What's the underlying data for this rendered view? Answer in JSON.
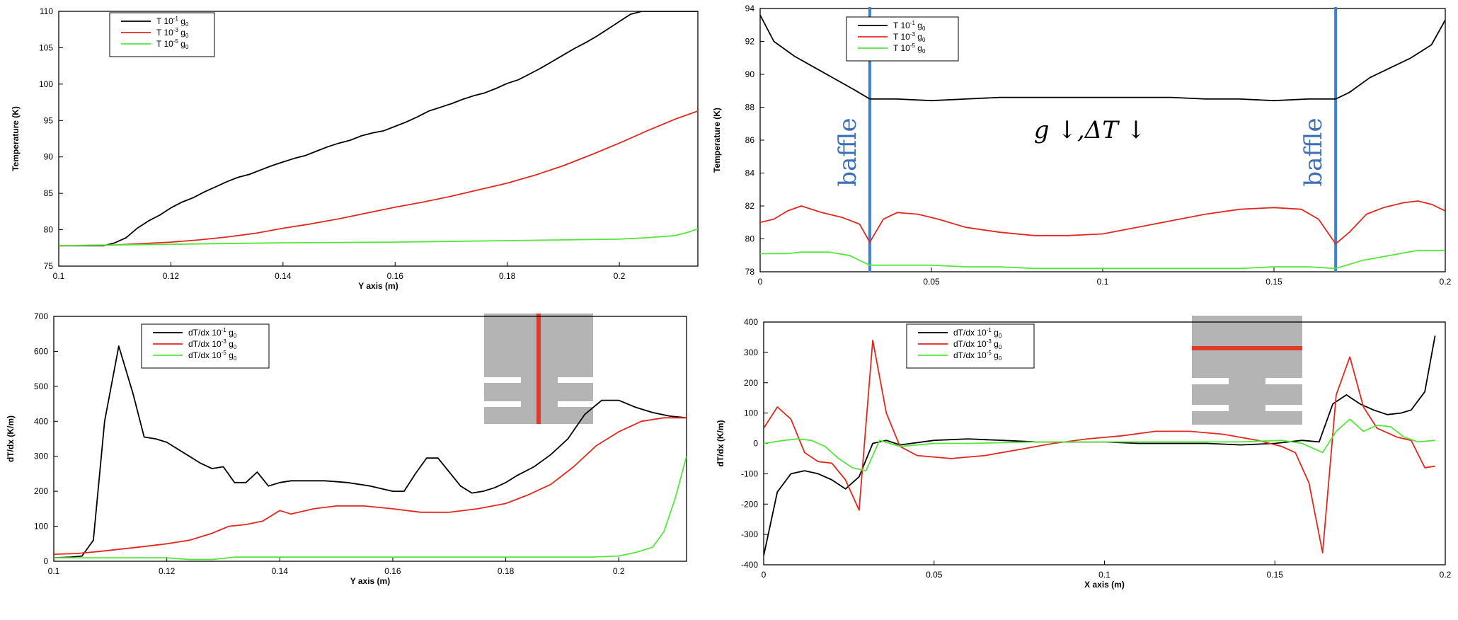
{
  "chart_data": [
    {
      "type": "line",
      "title": "",
      "xlabel": "Y axis (m)",
      "ylabel": "Temperature (K)",
      "xlim": [
        0.1,
        0.214
      ],
      "ylim": [
        75,
        110
      ],
      "xticks": [
        0.1,
        0.12,
        0.14,
        0.16,
        0.18,
        0.2
      ],
      "xtick_labels": [
        "0.1",
        "0.12",
        "0.14",
        "0.16",
        "0.18",
        "0.2"
      ],
      "yticks": [
        75,
        80,
        85,
        90,
        95,
        100,
        105,
        110
      ],
      "ytick_labels": [
        "75",
        "80",
        "85",
        "90",
        "95",
        "100",
        "105",
        "110"
      ],
      "legend": {
        "position": "top-left",
        "entries": [
          {
            "base": "T 10",
            "exp": "-1",
            "unit": " g",
            "sub": "0"
          },
          {
            "base": "T 10",
            "exp": "-3",
            "unit": " g",
            "sub": "0"
          },
          {
            "base": "T 10",
            "exp": "-5",
            "unit": " g",
            "sub": "0"
          }
        ]
      },
      "series": [
        {
          "name": "T 10-1 g0",
          "color": "#000000",
          "x": [
            0.1,
            0.105,
            0.108,
            0.11,
            0.112,
            0.114,
            0.116,
            0.118,
            0.12,
            0.122,
            0.124,
            0.126,
            0.128,
            0.13,
            0.132,
            0.134,
            0.136,
            0.138,
            0.14,
            0.142,
            0.144,
            0.146,
            0.148,
            0.15,
            0.152,
            0.154,
            0.156,
            0.158,
            0.16,
            0.162,
            0.164,
            0.166,
            0.168,
            0.17,
            0.172,
            0.174,
            0.176,
            0.178,
            0.18,
            0.182,
            0.184,
            0.186,
            0.188,
            0.19,
            0.192,
            0.194,
            0.196,
            0.198,
            0.2,
            0.202,
            0.204,
            0.206,
            0.208,
            0.21,
            0.212,
            0.214
          ],
          "y": [
            77.8,
            77.8,
            77.8,
            78.2,
            78.9,
            80.2,
            81.2,
            82.0,
            83.0,
            83.8,
            84.4,
            85.2,
            85.9,
            86.6,
            87.2,
            87.6,
            88.2,
            88.8,
            89.3,
            89.8,
            90.2,
            90.8,
            91.4,
            91.9,
            92.3,
            92.9,
            93.3,
            93.6,
            94.2,
            94.8,
            95.5,
            96.3,
            96.8,
            97.3,
            97.9,
            98.4,
            98.8,
            99.4,
            100.1,
            100.6,
            101.4,
            102.2,
            103.1,
            104.0,
            104.9,
            105.7,
            106.6,
            107.6,
            108.6,
            109.6,
            110.0,
            110.0,
            110.0,
            110.0,
            110.0,
            110.0
          ]
        },
        {
          "name": "T 10-3 g0",
          "color": "#e0281e",
          "x": [
            0.1,
            0.11,
            0.115,
            0.12,
            0.125,
            0.13,
            0.135,
            0.14,
            0.145,
            0.15,
            0.155,
            0.16,
            0.165,
            0.17,
            0.175,
            0.18,
            0.185,
            0.19,
            0.195,
            0.2,
            0.205,
            0.21,
            0.214
          ],
          "y": [
            77.8,
            77.9,
            78.1,
            78.3,
            78.6,
            79.0,
            79.5,
            80.2,
            80.8,
            81.5,
            82.3,
            83.1,
            83.8,
            84.6,
            85.5,
            86.4,
            87.5,
            88.8,
            90.3,
            91.9,
            93.6,
            95.2,
            96.3
          ]
        },
        {
          "name": "T 10-5 g0",
          "color": "#55e63c",
          "x": [
            0.1,
            0.12,
            0.14,
            0.16,
            0.18,
            0.2,
            0.205,
            0.21,
            0.212,
            0.214
          ],
          "y": [
            77.8,
            78.0,
            78.2,
            78.3,
            78.5,
            78.7,
            78.9,
            79.2,
            79.6,
            80.1
          ]
        }
      ]
    },
    {
      "type": "line",
      "title": "",
      "xlabel": "",
      "ylabel": "Temperature (K)",
      "xlim": [
        0,
        0.2
      ],
      "ylim": [
        78,
        94
      ],
      "xticks": [
        0,
        0.05,
        0.1,
        0.15,
        0.2
      ],
      "xtick_labels": [
        "0",
        "0.05",
        "0.1",
        "0.15",
        "0.2"
      ],
      "yticks": [
        78,
        80,
        82,
        84,
        86,
        88,
        90,
        92,
        94
      ],
      "ytick_labels": [
        "78",
        "80",
        "82",
        "84",
        "86",
        "88",
        "90",
        "92",
        "94"
      ],
      "legend": {
        "position": "top-left",
        "entries": [
          {
            "base": "T 10",
            "exp": "-1",
            "unit": " g",
            "sub": "0"
          },
          {
            "base": "T 10",
            "exp": "-3",
            "unit": " g",
            "sub": "0"
          },
          {
            "base": "T 10",
            "exp": "-5",
            "unit": " g",
            "sub": "0"
          }
        ]
      },
      "annotations": {
        "baffle_x": [
          0.032,
          0.168
        ],
        "baffle_label": "baffle",
        "center_text": "g ↓,ΔT ↓",
        "baffle_color": "#3b82d8"
      },
      "series": [
        {
          "name": "T 10-1 g0",
          "color": "#000000",
          "x": [
            0,
            0.004,
            0.01,
            0.016,
            0.022,
            0.028,
            0.032,
            0.04,
            0.05,
            0.06,
            0.07,
            0.08,
            0.09,
            0.1,
            0.11,
            0.12,
            0.13,
            0.14,
            0.15,
            0.16,
            0.168,
            0.172,
            0.178,
            0.184,
            0.19,
            0.196,
            0.2
          ],
          "y": [
            93.6,
            92.0,
            91.1,
            90.4,
            89.7,
            89.0,
            88.5,
            88.5,
            88.4,
            88.5,
            88.6,
            88.6,
            88.6,
            88.6,
            88.6,
            88.6,
            88.5,
            88.5,
            88.4,
            88.5,
            88.5,
            88.9,
            89.8,
            90.4,
            91.0,
            91.8,
            93.3
          ]
        },
        {
          "name": "T 10-3 g0",
          "color": "#e0281e",
          "x": [
            0,
            0.004,
            0.008,
            0.012,
            0.018,
            0.024,
            0.029,
            0.032,
            0.036,
            0.04,
            0.046,
            0.052,
            0.06,
            0.07,
            0.08,
            0.09,
            0.1,
            0.11,
            0.12,
            0.13,
            0.14,
            0.15,
            0.158,
            0.163,
            0.168,
            0.172,
            0.177,
            0.182,
            0.188,
            0.192,
            0.196,
            0.2
          ],
          "y": [
            81.0,
            81.2,
            81.7,
            82.0,
            81.6,
            81.3,
            80.9,
            79.8,
            81.2,
            81.6,
            81.5,
            81.2,
            80.7,
            80.4,
            80.2,
            80.2,
            80.3,
            80.7,
            81.1,
            81.5,
            81.8,
            81.9,
            81.8,
            81.2,
            79.7,
            80.4,
            81.5,
            81.9,
            82.2,
            82.3,
            82.1,
            81.7
          ]
        },
        {
          "name": "T 10-5 g0",
          "color": "#55e63c",
          "x": [
            0,
            0.008,
            0.012,
            0.02,
            0.026,
            0.032,
            0.04,
            0.05,
            0.06,
            0.07,
            0.08,
            0.1,
            0.12,
            0.14,
            0.15,
            0.16,
            0.168,
            0.176,
            0.184,
            0.192,
            0.2
          ],
          "y": [
            79.1,
            79.1,
            79.2,
            79.2,
            79.0,
            78.4,
            78.4,
            78.4,
            78.3,
            78.3,
            78.2,
            78.2,
            78.2,
            78.2,
            78.3,
            78.3,
            78.2,
            78.7,
            79.0,
            79.3,
            79.3
          ]
        }
      ]
    },
    {
      "type": "line",
      "title": "",
      "xlabel": "Y axis (m)",
      "ylabel": "dT/dx (K/m)",
      "xlim": [
        0.1,
        0.212
      ],
      "ylim": [
        0,
        700
      ],
      "xticks": [
        0.1,
        0.12,
        0.14,
        0.16,
        0.18,
        0.2
      ],
      "xtick_labels": [
        "0.1",
        "0.12",
        "0.14",
        "0.16",
        "0.18",
        "0.2"
      ],
      "yticks": [
        0,
        100,
        200,
        300,
        400,
        500,
        600,
        700
      ],
      "ytick_labels": [
        "0",
        "100",
        "200",
        "300",
        "400",
        "500",
        "600",
        "700"
      ],
      "legend": {
        "position": "top-left",
        "entries": [
          {
            "base": "dT/dx 10",
            "exp": "-1",
            "unit": " g",
            "sub": "0"
          },
          {
            "base": "dT/dx 10",
            "exp": "-3",
            "unit": " g",
            "sub": "0"
          },
          {
            "base": "dT/dx 10",
            "exp": "-5",
            "unit": " g",
            "sub": "0"
          }
        ]
      },
      "inset": {
        "type": "schematic",
        "bar": "vertical",
        "fill": "#b4b4b4",
        "bar_color": "#e03a2a"
      },
      "series": [
        {
          "name": "dT/dx 10-1 g0",
          "color": "#000000",
          "x": [
            0.1,
            0.103,
            0.105,
            0.107,
            0.109,
            0.1115,
            0.114,
            0.116,
            0.118,
            0.12,
            0.122,
            0.124,
            0.126,
            0.128,
            0.13,
            0.132,
            0.134,
            0.136,
            0.138,
            0.14,
            0.142,
            0.145,
            0.148,
            0.152,
            0.156,
            0.16,
            0.162,
            0.164,
            0.166,
            0.168,
            0.17,
            0.172,
            0.174,
            0.176,
            0.178,
            0.18,
            0.182,
            0.185,
            0.188,
            0.191,
            0.194,
            0.197,
            0.2,
            0.203,
            0.206,
            0.209,
            0.212
          ],
          "y": [
            10,
            12,
            15,
            60,
            400,
            615,
            480,
            355,
            350,
            340,
            320,
            300,
            280,
            265,
            270,
            225,
            225,
            255,
            215,
            225,
            230,
            230,
            230,
            225,
            215,
            200,
            200,
            250,
            295,
            295,
            255,
            215,
            195,
            200,
            210,
            225,
            245,
            270,
            305,
            350,
            420,
            460,
            460,
            440,
            425,
            415,
            410
          ]
        },
        {
          "name": "dT/dx 10-3 g0",
          "color": "#e0281e",
          "x": [
            0.1,
            0.104,
            0.108,
            0.112,
            0.116,
            0.12,
            0.124,
            0.128,
            0.131,
            0.134,
            0.137,
            0.14,
            0.142,
            0.146,
            0.15,
            0.155,
            0.16,
            0.165,
            0.17,
            0.175,
            0.18,
            0.184,
            0.188,
            0.192,
            0.196,
            0.2,
            0.204,
            0.208,
            0.212
          ],
          "y": [
            20,
            22,
            28,
            35,
            42,
            50,
            60,
            80,
            100,
            105,
            115,
            145,
            135,
            150,
            158,
            158,
            150,
            140,
            140,
            150,
            165,
            190,
            220,
            270,
            330,
            370,
            400,
            410,
            410
          ]
        },
        {
          "name": "dT/dx 10-5 g0",
          "color": "#55e63c",
          "x": [
            0.1,
            0.11,
            0.12,
            0.124,
            0.128,
            0.132,
            0.14,
            0.15,
            0.16,
            0.17,
            0.18,
            0.19,
            0.195,
            0.2,
            0.203,
            0.206,
            0.208,
            0.21,
            0.212
          ],
          "y": [
            10,
            10,
            10,
            5,
            5,
            12,
            12,
            12,
            12,
            12,
            12,
            12,
            12,
            15,
            25,
            40,
            85,
            180,
            300
          ]
        }
      ]
    },
    {
      "type": "line",
      "title": "",
      "xlabel": "X axis (m)",
      "ylabel": "dT/dx (K/m)",
      "xlim": [
        0,
        0.2
      ],
      "ylim": [
        -400,
        400
      ],
      "xticks": [
        0,
        0.05,
        0.1,
        0.15,
        0.2
      ],
      "xtick_labels": [
        "0",
        "0.05",
        "0.1",
        "0.15",
        "0.2"
      ],
      "yticks": [
        -400,
        -300,
        -200,
        -100,
        0,
        100,
        200,
        300,
        400
      ],
      "ytick_labels": [
        "-400",
        "-300",
        "-200",
        "-100",
        "0",
        "100",
        "200",
        "300",
        "400"
      ],
      "legend": {
        "position": "top-left",
        "entries": [
          {
            "base": "dT/dx 10",
            "exp": "-1",
            "unit": " g",
            "sub": "0"
          },
          {
            "base": "dT/dx 10",
            "exp": "-3",
            "unit": " g",
            "sub": "0"
          },
          {
            "base": "dT/dx 10",
            "exp": "-5",
            "unit": " g",
            "sub": "0"
          }
        ]
      },
      "inset": {
        "type": "schematic",
        "bar": "horizontal",
        "fill": "#b4b4b4",
        "bar_color": "#e03a2a"
      },
      "series": [
        {
          "name": "dT/dx 10-1 g0",
          "color": "#000000",
          "x": [
            0,
            0.004,
            0.008,
            0.012,
            0.016,
            0.02,
            0.024,
            0.028,
            0.032,
            0.036,
            0.04,
            0.05,
            0.06,
            0.07,
            0.08,
            0.09,
            0.1,
            0.11,
            0.12,
            0.13,
            0.14,
            0.15,
            0.158,
            0.163,
            0.167,
            0.171,
            0.175,
            0.179,
            0.183,
            0.187,
            0.19,
            0.194,
            0.197
          ],
          "y": [
            -370,
            -160,
            -100,
            -90,
            -100,
            -120,
            -150,
            -110,
            0,
            10,
            -5,
            10,
            15,
            10,
            5,
            5,
            5,
            0,
            0,
            0,
            -5,
            0,
            10,
            5,
            130,
            160,
            130,
            110,
            95,
            100,
            110,
            170,
            355
          ]
        },
        {
          "name": "dT/dx 10-3 g0",
          "color": "#e0281e",
          "x": [
            0,
            0.004,
            0.008,
            0.012,
            0.016,
            0.02,
            0.024,
            0.028,
            0.032,
            0.036,
            0.04,
            0.045,
            0.055,
            0.065,
            0.075,
            0.085,
            0.095,
            0.105,
            0.115,
            0.125,
            0.135,
            0.145,
            0.152,
            0.156,
            0.16,
            0.164,
            0.168,
            0.172,
            0.176,
            0.18,
            0.186,
            0.19,
            0.194,
            0.197
          ],
          "y": [
            50,
            120,
            80,
            -30,
            -60,
            -65,
            -120,
            -220,
            340,
            100,
            -10,
            -40,
            -50,
            -40,
            -20,
            0,
            15,
            25,
            40,
            40,
            30,
            10,
            -10,
            -30,
            -130,
            -360,
            160,
            285,
            120,
            50,
            20,
            10,
            -80,
            -75
          ]
        },
        {
          "name": "dT/dx 10-5 g0",
          "color": "#55e63c",
          "x": [
            0,
            0.006,
            0.01,
            0.014,
            0.018,
            0.022,
            0.026,
            0.03,
            0.034,
            0.04,
            0.05,
            0.06,
            0.08,
            0.1,
            0.12,
            0.14,
            0.152,
            0.158,
            0.164,
            0.168,
            0.172,
            0.176,
            0.18,
            0.184,
            0.188,
            0.192,
            0.197
          ],
          "y": [
            0,
            10,
            15,
            10,
            -10,
            -50,
            -80,
            -90,
            10,
            -10,
            0,
            0,
            5,
            5,
            5,
            5,
            10,
            0,
            -30,
            40,
            80,
            40,
            60,
            55,
            20,
            5,
            10
          ]
        }
      ]
    }
  ]
}
